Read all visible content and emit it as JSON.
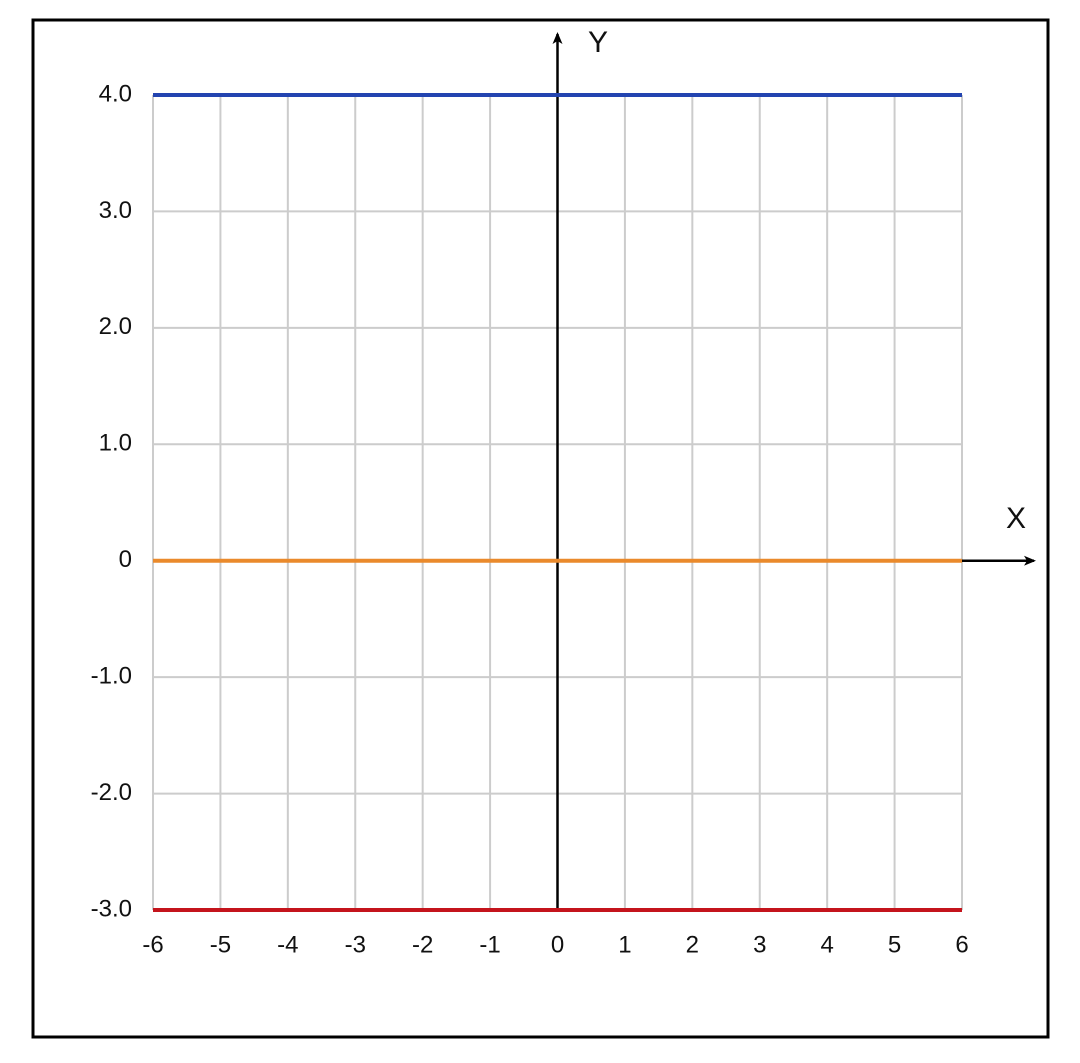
{
  "chart_data": {
    "type": "line",
    "x_label": "X",
    "y_label": "Y",
    "x": [
      -6,
      6
    ],
    "series": [
      {
        "color": "#2344b0",
        "values": [
          4,
          4
        ]
      },
      {
        "color": "#ea8a2c",
        "values": [
          0,
          0
        ]
      },
      {
        "color": "#c4141c",
        "values": [
          -3,
          -3
        ]
      }
    ],
    "xlim": [
      -6,
      6
    ],
    "ylim": [
      -3,
      4
    ],
    "xticks": [
      -6,
      -5,
      -4,
      -3,
      -2,
      -1,
      0,
      1,
      2,
      3,
      4,
      5,
      6
    ],
    "yticks": [
      {
        "value": 4,
        "label": "4.0"
      },
      {
        "value": 3,
        "label": "3.0"
      },
      {
        "value": 2,
        "label": "2.0"
      },
      {
        "value": 1,
        "label": "1.0"
      },
      0,
      {
        "value": -1,
        "label": "-1.0"
      },
      {
        "value": -2,
        "label": "-2.0"
      },
      {
        "value": -3,
        "label": "-3.0"
      }
    ],
    "grid": true
  }
}
